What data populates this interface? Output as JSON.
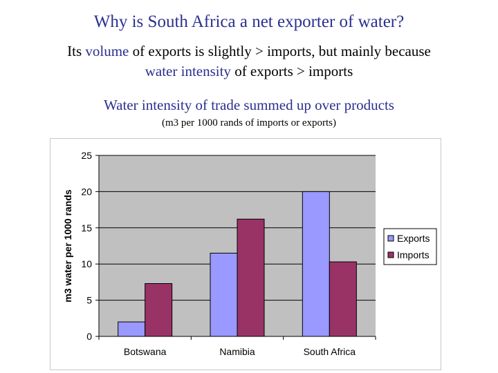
{
  "header": {
    "title": "Why is South Africa a net exporter of water?",
    "subtitle_line1_pre": "Its ",
    "subtitle_line1_accent": "volume",
    "subtitle_line1_post": " of exports is slightly > imports, but mainly because",
    "subtitle_line2_accent": "water intensity",
    "subtitle_line2_post": " of exports > imports",
    "chart_heading": "Water intensity of trade summed up over products",
    "chart_subheading": "(m3 per 1000 rands of imports or exports)"
  },
  "colors": {
    "title": "#2b2f8f",
    "exports": "#9999ff",
    "imports": "#993366",
    "plot_bg": "#c0c0c0"
  },
  "chart_data": {
    "type": "bar",
    "categories": [
      "Botswana",
      "Namibia",
      "South Africa"
    ],
    "series": [
      {
        "name": "Exports",
        "values": [
          2,
          11.5,
          20
        ]
      },
      {
        "name": "Imports",
        "values": [
          7.3,
          16.2,
          10.3
        ]
      }
    ],
    "ylabel": "m3 water per 1000 rands",
    "xlabel": "",
    "ylim": [
      0,
      25
    ],
    "yticks": [
      0,
      5,
      10,
      15,
      20,
      25
    ],
    "grid": true,
    "legend": "right"
  }
}
